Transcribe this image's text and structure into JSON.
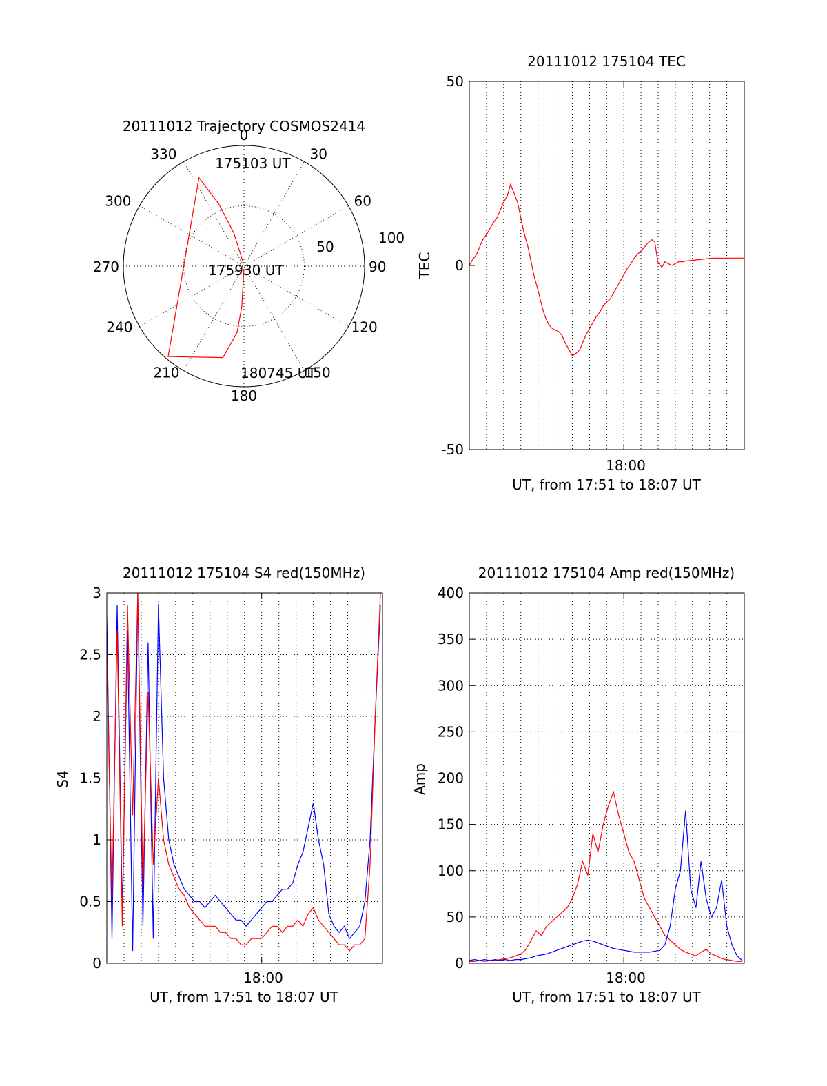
{
  "chart_data": [
    {
      "type": "polar",
      "title": "20111012 Trajectory COSMOS2414",
      "angle_labels": [
        "0",
        "30",
        "60",
        "90",
        "120",
        "150",
        "180",
        "210",
        "240",
        "270",
        "300",
        "330"
      ],
      "radial_labels": [
        "50",
        "100"
      ],
      "annotations": [
        "175103 UT",
        "175930 UT",
        "180745 UT"
      ],
      "trajectory": {
        "color": "#ff0000",
        "points": [
          [
            349,
            88
          ],
          [
            343,
            64
          ],
          [
            338,
            40
          ],
          [
            333,
            16
          ],
          [
            220,
            2
          ],
          [
            193,
            20
          ],
          [
            186,
            40
          ],
          [
            183,
            60
          ],
          [
            182,
            88
          ]
        ]
      }
    },
    {
      "type": "line",
      "title": "20111012 175104 TEC",
      "xlabel": "UT, from 17:51 to 18:07 UT",
      "ylabel": "TEC",
      "xlim": [
        17.85,
        18.117
      ],
      "x_tick_label": "18:00",
      "ylim": [
        -50,
        50
      ],
      "yticks": [
        "50",
        "0",
        "-50"
      ],
      "series": [
        {
          "color": "#ff0000",
          "x": [
            17.85,
            17.853,
            17.857,
            17.86,
            17.863,
            17.867,
            17.87,
            17.873,
            17.877,
            17.88,
            17.883,
            17.887,
            17.89,
            17.893,
            17.897,
            17.9,
            17.903,
            17.907,
            17.91,
            17.913,
            17.917,
            17.92,
            17.923,
            17.927,
            17.93,
            17.933,
            17.937,
            17.94,
            17.943,
            17.947,
            17.95,
            17.953,
            17.957,
            17.96,
            17.963,
            17.967,
            17.97,
            17.973,
            17.977,
            17.98,
            17.983,
            17.987,
            17.99,
            17.993,
            17.997,
            18.0,
            18.003,
            18.007,
            18.01,
            18.013,
            18.017,
            18.02,
            18.023,
            18.027,
            18.03,
            18.033,
            18.037,
            18.04,
            18.043,
            18.047,
            18.05,
            18.053,
            18.057,
            18.06,
            18.063,
            18.067,
            18.07,
            18.073,
            18.077,
            18.08,
            18.083,
            18.087,
            18.09,
            18.093,
            18.097,
            18.1,
            18.103,
            18.107,
            18.11,
            18.113,
            18.117
          ],
          "values": [
            0.0,
            1.5,
            3.0,
            5.0,
            7.0,
            8.5,
            10.0,
            11.5,
            13.0,
            15.0,
            17.0,
            19.0,
            22.0,
            20.0,
            17.0,
            13.0,
            9.0,
            5.0,
            1.0,
            -3.0,
            -7.0,
            -10.5,
            -13.5,
            -16.0,
            -17.0,
            -17.5,
            -18.0,
            -19.0,
            -21.0,
            -23.0,
            -24.5,
            -24.0,
            -23.0,
            -21.0,
            -19.0,
            -17.0,
            -15.5,
            -14.0,
            -12.5,
            -11.0,
            -10.0,
            -9.0,
            -7.5,
            -6.0,
            -4.0,
            -2.5,
            -1.0,
            0.5,
            2.0,
            3.0,
            4.0,
            5.0,
            6.0,
            7.0,
            6.5,
            1.0,
            -0.5,
            1.0,
            0.5,
            0.0,
            0.5,
            1.0,
            1.0,
            1.2,
            1.3,
            1.4,
            1.5,
            1.6,
            1.7,
            1.8,
            1.9,
            2.0,
            2.0,
            2.0,
            2.0,
            2.0,
            2.0,
            2.0,
            2.0,
            2.0,
            2.0
          ]
        }
      ]
    },
    {
      "type": "line",
      "title": "20111012 175104 S4 red(150MHz)",
      "xlabel": "UT, from 17:51 to 18:07 UT",
      "ylabel": "S4",
      "xlim": [
        17.85,
        18.117
      ],
      "x_tick_label": "18:00",
      "ylim": [
        0,
        3
      ],
      "yticks": [
        "3",
        "2.5",
        "2",
        "1.5",
        "1",
        "0.5",
        "0"
      ],
      "series": [
        {
          "color": "#0000ff",
          "x": [
            17.85,
            17.855,
            17.86,
            17.865,
            17.87,
            17.875,
            17.88,
            17.885,
            17.89,
            17.895,
            17.9,
            17.905,
            17.91,
            17.915,
            17.92,
            17.925,
            17.93,
            17.935,
            17.94,
            17.945,
            17.95,
            17.955,
            17.96,
            17.965,
            17.97,
            17.975,
            17.98,
            17.985,
            17.99,
            17.995,
            18.0,
            18.005,
            18.01,
            18.015,
            18.02,
            18.025,
            18.03,
            18.035,
            18.04,
            18.045,
            18.05,
            18.055,
            18.06,
            18.065,
            18.07,
            18.075,
            18.08,
            18.085,
            18.09,
            18.095,
            18.1,
            18.105,
            18.11,
            18.115
          ],
          "values": [
            2.8,
            0.2,
            2.9,
            0.4,
            2.7,
            0.1,
            3.0,
            0.3,
            2.6,
            0.2,
            2.9,
            1.5,
            1.0,
            0.8,
            0.7,
            0.6,
            0.55,
            0.5,
            0.5,
            0.45,
            0.5,
            0.55,
            0.5,
            0.45,
            0.4,
            0.35,
            0.35,
            0.3,
            0.35,
            0.4,
            0.45,
            0.5,
            0.5,
            0.55,
            0.6,
            0.6,
            0.65,
            0.8,
            0.9,
            1.1,
            1.3,
            1.0,
            0.8,
            0.4,
            0.3,
            0.25,
            0.3,
            0.2,
            0.25,
            0.3,
            0.5,
            1.0,
            2.0,
            2.9
          ]
        },
        {
          "color": "#ff0000",
          "x": [
            17.85,
            17.855,
            17.86,
            17.865,
            17.87,
            17.875,
            17.88,
            17.885,
            17.89,
            17.895,
            17.9,
            17.905,
            17.91,
            17.915,
            17.92,
            17.925,
            17.93,
            17.935,
            17.94,
            17.945,
            17.95,
            17.955,
            17.96,
            17.965,
            17.97,
            17.975,
            17.98,
            17.985,
            17.99,
            17.995,
            18.0,
            18.005,
            18.01,
            18.015,
            18.02,
            18.025,
            18.03,
            18.035,
            18.04,
            18.045,
            18.05,
            18.055,
            18.06,
            18.065,
            18.07,
            18.075,
            18.08,
            18.085,
            18.09,
            18.095,
            18.1,
            18.105,
            18.11,
            18.115
          ],
          "values": [
            2.5,
            0.5,
            2.7,
            0.3,
            2.9,
            1.2,
            3.0,
            0.6,
            2.2,
            0.8,
            1.5,
            1.0,
            0.8,
            0.7,
            0.6,
            0.55,
            0.45,
            0.4,
            0.35,
            0.3,
            0.3,
            0.3,
            0.25,
            0.25,
            0.2,
            0.2,
            0.15,
            0.15,
            0.2,
            0.2,
            0.2,
            0.25,
            0.3,
            0.3,
            0.25,
            0.3,
            0.3,
            0.35,
            0.3,
            0.4,
            0.45,
            0.35,
            0.3,
            0.25,
            0.2,
            0.15,
            0.15,
            0.1,
            0.15,
            0.15,
            0.2,
            0.8,
            2.0,
            3.0
          ]
        }
      ]
    },
    {
      "type": "line",
      "title": "20111012 175104 Amp red(150MHz)",
      "xlabel": "UT, from 17:51 to 18:07 UT",
      "ylabel": "Amp",
      "xlim": [
        17.85,
        18.117
      ],
      "x_tick_label": "18:00",
      "ylim": [
        0,
        400
      ],
      "yticks": [
        "400",
        "350",
        "300",
        "250",
        "200",
        "150",
        "100",
        "50",
        "0"
      ],
      "series": [
        {
          "color": "#ff0000",
          "x": [
            17.85,
            17.855,
            17.86,
            17.865,
            17.87,
            17.875,
            17.88,
            17.885,
            17.89,
            17.895,
            17.9,
            17.905,
            17.91,
            17.915,
            17.92,
            17.925,
            17.93,
            17.935,
            17.94,
            17.945,
            17.95,
            17.955,
            17.96,
            17.965,
            17.97,
            17.975,
            17.98,
            17.985,
            17.99,
            17.995,
            18.0,
            18.005,
            18.01,
            18.015,
            18.02,
            18.025,
            18.03,
            18.035,
            18.04,
            18.045,
            18.05,
            18.055,
            18.06,
            18.065,
            18.07,
            18.075,
            18.08,
            18.085,
            18.09,
            18.095,
            18.1,
            18.105,
            18.11,
            18.115
          ],
          "values": [
            2,
            2,
            3,
            2,
            3,
            3,
            4,
            5,
            6,
            8,
            10,
            15,
            25,
            35,
            30,
            40,
            45,
            50,
            55,
            60,
            70,
            85,
            110,
            95,
            140,
            120,
            150,
            170,
            185,
            160,
            140,
            120,
            110,
            90,
            70,
            60,
            50,
            40,
            30,
            25,
            20,
            15,
            12,
            10,
            8,
            12,
            15,
            10,
            8,
            5,
            4,
            3,
            2,
            2
          ]
        },
        {
          "color": "#0000ff",
          "x": [
            17.85,
            17.855,
            17.86,
            17.865,
            17.87,
            17.875,
            17.88,
            17.885,
            17.89,
            17.895,
            17.9,
            17.905,
            17.91,
            17.915,
            17.92,
            17.925,
            17.93,
            17.935,
            17.94,
            17.945,
            17.95,
            17.955,
            17.96,
            17.965,
            17.97,
            17.975,
            17.98,
            17.985,
            17.99,
            17.995,
            18.0,
            18.005,
            18.01,
            18.015,
            18.02,
            18.025,
            18.03,
            18.035,
            18.04,
            18.045,
            18.05,
            18.055,
            18.06,
            18.065,
            18.07,
            18.075,
            18.08,
            18.085,
            18.09,
            18.095,
            18.1,
            18.105,
            18.11,
            18.115
          ],
          "values": [
            3,
            4,
            3,
            4,
            3,
            4,
            3,
            4,
            3,
            4,
            4,
            5,
            6,
            8,
            9,
            10,
            12,
            14,
            16,
            18,
            20,
            22,
            24,
            25,
            24,
            22,
            20,
            18,
            16,
            15,
            14,
            13,
            12,
            12,
            12,
            12,
            13,
            14,
            20,
            40,
            80,
            100,
            165,
            80,
            60,
            110,
            70,
            50,
            60,
            90,
            40,
            20,
            8,
            3
          ]
        }
      ]
    }
  ]
}
